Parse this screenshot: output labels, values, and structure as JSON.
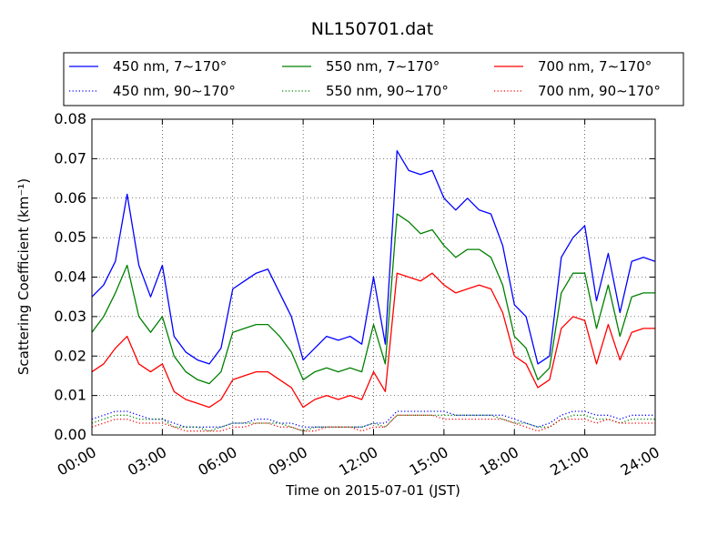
{
  "chart_data": {
    "type": "line",
    "title": "NL150701.dat",
    "xlabel": "Time on 2015-07-01 (JST)",
    "ylabel": "Scattering Coefficient (km⁻¹)",
    "ylim": [
      0.0,
      0.08
    ],
    "xlim": [
      "00:00",
      "24:00"
    ],
    "x_ticks": [
      "00:00",
      "03:00",
      "06:00",
      "09:00",
      "12:00",
      "15:00",
      "18:00",
      "21:00",
      "24:00"
    ],
    "y_ticks": [
      "0.00",
      "0.01",
      "0.02",
      "0.03",
      "0.04",
      "0.05",
      "0.06",
      "0.07",
      "0.08"
    ],
    "grid": true,
    "legend_position": "top",
    "x": [
      0,
      0.5,
      1,
      1.5,
      2,
      2.5,
      3,
      3.5,
      4,
      4.5,
      5,
      5.5,
      6,
      6.5,
      7,
      7.5,
      8,
      8.5,
      9,
      9.5,
      10,
      10.5,
      11,
      11.5,
      12,
      12.5,
      13,
      13.5,
      14,
      14.5,
      15,
      15.5,
      16,
      16.5,
      17,
      17.5,
      18,
      18.5,
      19,
      19.5,
      20,
      20.5,
      21,
      21.5,
      22,
      22.5,
      23,
      23.5,
      24
    ],
    "series": [
      {
        "name": "450 nm, 7∼170°",
        "color": "#0000ff",
        "style": "solid",
        "values": [
          0.035,
          0.038,
          0.044,
          0.061,
          0.043,
          0.035,
          0.043,
          0.025,
          0.021,
          0.019,
          0.018,
          0.022,
          0.037,
          0.039,
          0.041,
          0.042,
          0.036,
          0.03,
          0.019,
          0.022,
          0.025,
          0.024,
          0.025,
          0.023,
          0.04,
          0.023,
          0.072,
          0.067,
          0.066,
          0.067,
          0.06,
          0.057,
          0.06,
          0.057,
          0.056,
          0.048,
          0.033,
          0.03,
          0.018,
          0.02,
          0.045,
          0.05,
          0.053,
          0.034,
          0.046,
          0.031,
          0.044,
          0.045,
          0.044
        ]
      },
      {
        "name": "550 nm, 7∼170°",
        "color": "#008000",
        "style": "solid",
        "values": [
          0.026,
          0.03,
          0.036,
          0.043,
          0.03,
          0.026,
          0.03,
          0.02,
          0.016,
          0.014,
          0.013,
          0.016,
          0.026,
          0.027,
          0.028,
          0.028,
          0.025,
          0.021,
          0.014,
          0.016,
          0.017,
          0.016,
          0.017,
          0.016,
          0.028,
          0.018,
          0.056,
          0.054,
          0.051,
          0.052,
          0.048,
          0.045,
          0.047,
          0.047,
          0.045,
          0.038,
          0.025,
          0.022,
          0.014,
          0.017,
          0.036,
          0.041,
          0.041,
          0.027,
          0.038,
          0.025,
          0.035,
          0.036,
          0.036
        ]
      },
      {
        "name": "700 nm, 7∼170°",
        "color": "#ff0000",
        "style": "solid",
        "values": [
          0.016,
          0.018,
          0.022,
          0.025,
          0.018,
          0.016,
          0.018,
          0.011,
          0.009,
          0.008,
          0.007,
          0.009,
          0.014,
          0.015,
          0.016,
          0.016,
          0.014,
          0.012,
          0.007,
          0.009,
          0.01,
          0.009,
          0.01,
          0.009,
          0.016,
          0.011,
          0.041,
          0.04,
          0.039,
          0.041,
          0.038,
          0.036,
          0.037,
          0.038,
          0.037,
          0.031,
          0.02,
          0.018,
          0.012,
          0.014,
          0.027,
          0.03,
          0.029,
          0.018,
          0.028,
          0.019,
          0.026,
          0.027,
          0.027
        ]
      },
      {
        "name": "450 nm, 90∼170°",
        "color": "#0000ff",
        "style": "dotted",
        "values": [
          0.004,
          0.005,
          0.006,
          0.006,
          0.005,
          0.004,
          0.004,
          0.003,
          0.002,
          0.002,
          0.002,
          0.002,
          0.003,
          0.003,
          0.004,
          0.004,
          0.003,
          0.003,
          0.002,
          0.002,
          0.002,
          0.002,
          0.002,
          0.002,
          0.003,
          0.003,
          0.006,
          0.006,
          0.006,
          0.006,
          0.006,
          0.005,
          0.005,
          0.005,
          0.005,
          0.005,
          0.004,
          0.003,
          0.002,
          0.003,
          0.005,
          0.006,
          0.006,
          0.005,
          0.005,
          0.004,
          0.005,
          0.005,
          0.005
        ]
      },
      {
        "name": "550 nm, 90∼170°",
        "color": "#008000",
        "style": "dotted",
        "values": [
          0.003,
          0.004,
          0.005,
          0.005,
          0.004,
          0.004,
          0.004,
          0.002,
          0.002,
          0.002,
          0.001,
          0.002,
          0.003,
          0.003,
          0.003,
          0.003,
          0.003,
          0.002,
          0.001,
          0.002,
          0.002,
          0.002,
          0.002,
          0.002,
          0.003,
          0.002,
          0.005,
          0.005,
          0.005,
          0.005,
          0.005,
          0.005,
          0.005,
          0.005,
          0.005,
          0.004,
          0.003,
          0.003,
          0.002,
          0.002,
          0.004,
          0.005,
          0.005,
          0.004,
          0.004,
          0.003,
          0.004,
          0.004,
          0.004
        ]
      },
      {
        "name": "700 nm, 90∼170°",
        "color": "#ff0000",
        "style": "dotted",
        "values": [
          0.002,
          0.003,
          0.004,
          0.004,
          0.003,
          0.003,
          0.003,
          0.002,
          0.001,
          0.001,
          0.001,
          0.001,
          0.002,
          0.002,
          0.003,
          0.003,
          0.002,
          0.002,
          0.001,
          0.001,
          0.002,
          0.002,
          0.002,
          0.001,
          0.002,
          0.002,
          0.005,
          0.005,
          0.005,
          0.005,
          0.004,
          0.004,
          0.004,
          0.004,
          0.004,
          0.004,
          0.003,
          0.002,
          0.001,
          0.002,
          0.004,
          0.004,
          0.004,
          0.003,
          0.004,
          0.003,
          0.003,
          0.003,
          0.003
        ]
      }
    ]
  }
}
